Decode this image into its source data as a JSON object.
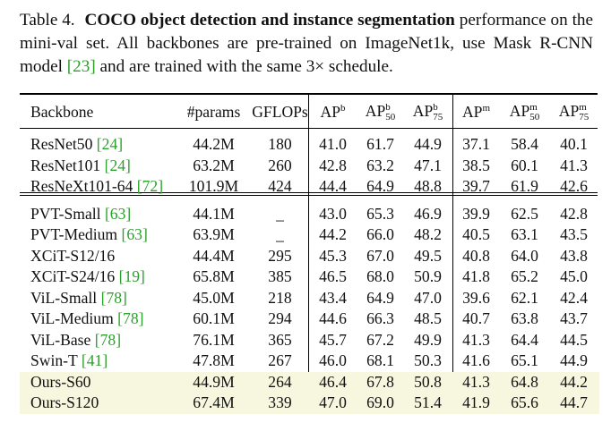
{
  "caption": {
    "label": "Table 4.",
    "bold_text": "COCO object detection and instance segmentation",
    "rest_before_cite": "performance on the mini-val set. All backbones are pre-trained on ImageNet1k, use Mask R-CNN model",
    "cite": "[23]",
    "rest_after_cite": "and are trained with the same 3× schedule."
  },
  "table": {
    "headers": {
      "backbone": "Backbone",
      "params": "#params",
      "gflops": "GFLOPs",
      "ap_b": "AP",
      "ap_b_sup": "b",
      "ap_b50": "AP",
      "ap_b50_sup": "b",
      "ap_b50_sub": "50",
      "ap_b75": "AP",
      "ap_b75_sup": "b",
      "ap_b75_sub": "75",
      "ap_m": "AP",
      "ap_m_sup": "m",
      "ap_m50": "AP",
      "ap_m50_sup": "m",
      "ap_m50_sub": "50",
      "ap_m75": "AP",
      "ap_m75_sup": "m",
      "ap_m75_sub": "75"
    },
    "group1": [
      {
        "name": "ResNet50",
        "cite": "[24]",
        "params": "44.2M",
        "gflops": "180",
        "apb": "41.0",
        "apb50": "61.7",
        "apb75": "44.9",
        "apm": "37.1",
        "apm50": "58.4",
        "apm75": "40.1"
      },
      {
        "name": "ResNet101",
        "cite": "[24]",
        "params": "63.2M",
        "gflops": "260",
        "apb": "42.8",
        "apb50": "63.2",
        "apb75": "47.1",
        "apm": "38.5",
        "apm50": "60.1",
        "apm75": "41.3"
      },
      {
        "name": "ResNeXt101-64",
        "cite": "[72]",
        "params": "101.9M",
        "gflops": "424",
        "apb": "44.4",
        "apb50": "64.9",
        "apb75": "48.8",
        "apm": "39.7",
        "apm50": "61.9",
        "apm75": "42.6"
      }
    ],
    "group2": [
      {
        "name": "PVT-Small",
        "cite": "[63]",
        "params": "44.1M",
        "gflops": "_",
        "apb": "43.0",
        "apb50": "65.3",
        "apb75": "46.9",
        "apm": "39.9",
        "apm50": "62.5",
        "apm75": "42.8"
      },
      {
        "name": "PVT-Medium",
        "cite": "[63]",
        "params": "63.9M",
        "gflops": "_",
        "apb": "44.2",
        "apb50": "66.0",
        "apb75": "48.2",
        "apm": "40.5",
        "apm50": "63.1",
        "apm75": "43.5"
      },
      {
        "name": "XCiT-S12/16",
        "cite": "",
        "params": "44.4M",
        "gflops": "295",
        "apb": "45.3",
        "apb50": "67.0",
        "apb75": "49.5",
        "apm": "40.8",
        "apm50": "64.0",
        "apm75": "43.8"
      },
      {
        "name": "XCiT-S24/16",
        "cite": "[19]",
        "params": "65.8M",
        "gflops": "385",
        "apb": "46.5",
        "apb50": "68.0",
        "apb75": "50.9",
        "apm": "41.8",
        "apm50": "65.2",
        "apm75": "45.0"
      },
      {
        "name": "ViL-Small",
        "cite": "[78]",
        "params": "45.0M",
        "gflops": "218",
        "apb": "43.4",
        "apb50": "64.9",
        "apb75": "47.0",
        "apm": "39.6",
        "apm50": "62.1",
        "apm75": "42.4"
      },
      {
        "name": "ViL-Medium",
        "cite": "[78]",
        "params": "60.1M",
        "gflops": "294",
        "apb": "44.6",
        "apb50": "66.3",
        "apb75": "48.5",
        "apm": "40.7",
        "apm50": "63.8",
        "apm75": "43.7"
      },
      {
        "name": "ViL-Base",
        "cite": "[78]",
        "params": "76.1M",
        "gflops": "365",
        "apb": "45.7",
        "apb50": "67.2",
        "apb75": "49.9",
        "apm": "41.3",
        "apm50": "64.4",
        "apm75": "44.5"
      },
      {
        "name": "Swin-T",
        "cite": "[41]",
        "params": "47.8M",
        "gflops": "267",
        "apb": "46.0",
        "apb50": "68.1",
        "apb75": "50.3",
        "apm": "41.6",
        "apm50": "65.1",
        "apm75": "44.9"
      },
      {
        "name": "Ours-S60",
        "cite": "",
        "params": "44.9M",
        "gflops": "264",
        "apb": "46.4",
        "apb50": "67.8",
        "apb75": "50.8",
        "apm": "41.3",
        "apm50": "64.8",
        "apm75": "44.2"
      },
      {
        "name": "Ours-S120",
        "cite": "",
        "params": "67.4M",
        "gflops": "339",
        "apb": "47.0",
        "apb50": "69.0",
        "apb75": "51.4",
        "apm": "41.9",
        "apm50": "65.6",
        "apm75": "44.7"
      }
    ],
    "highlight_color": "#f7f7df",
    "cite_color": "#2ca02c"
  }
}
